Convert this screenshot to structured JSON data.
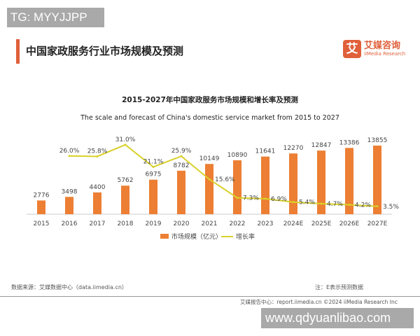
{
  "watermarks": {
    "top_left": "TG: MYYJJPP",
    "bottom_right": "www.qdyuanlibao.com"
  },
  "header": {
    "title": "中国家政服务行业市场规模及预测",
    "logo_mark": "艾",
    "logo_cn": "艾媒咨询",
    "logo_en": "iiMedia Research"
  },
  "colors": {
    "bar": "#ec7f33",
    "line": "#d9d12a",
    "accent": "#e0603a"
  },
  "chart_data": {
    "type": "bar+line",
    "title": "2015-2027年中国家政服务市场规模和增长率及预测",
    "subtitle": "The scale and forecast of China's domestic service market from 2015 to 2027",
    "categories": [
      "2015",
      "2016",
      "2017",
      "2018",
      "2019",
      "2020",
      "2021",
      "2022",
      "2023",
      "2024E",
      "2025E",
      "2026E",
      "2027E"
    ],
    "series": [
      {
        "name": "市场规模（亿元）",
        "type": "bar",
        "values": [
          2776,
          3498,
          4400,
          5762,
          6975,
          8782,
          10149,
          10890,
          11641,
          12270,
          12847,
          13386,
          13855
        ],
        "labels": [
          "2776",
          "3498",
          "4400",
          "5762",
          "6975",
          "8782",
          "10149",
          "10890",
          "11641",
          "12270",
          "12847",
          "13386",
          "13855"
        ]
      },
      {
        "name": "增长率",
        "type": "line",
        "values": [
          null,
          26.0,
          25.8,
          31.0,
          21.1,
          25.9,
          15.6,
          7.3,
          6.9,
          5.4,
          4.7,
          4.2,
          3.5
        ],
        "labels": [
          "",
          "26.0%",
          "25.8%",
          "31.0%",
          "21.1%",
          "25.9%",
          "15.6%",
          "7.3%",
          "6.9%",
          "5.4%",
          "4.7%",
          "4.2%",
          "3.5%"
        ]
      }
    ],
    "grid": false,
    "legend": "bottom"
  },
  "footer": {
    "source": "数据来源：艾媒数据中心（data.iimedia.cn）",
    "note": "注：E表示预测数据",
    "report": "艾媒报告中心：report.iimedia.cn    ©2024  iiMedia Research  Inc"
  }
}
